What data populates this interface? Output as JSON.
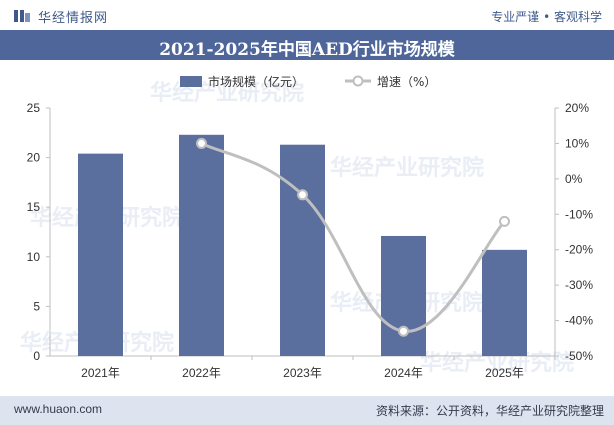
{
  "header": {
    "brand": "华经情报网",
    "slogan": "专业严谨 • 客观科学"
  },
  "title": "2021-2025年中国AED行业市场规模",
  "footer": {
    "url": "www.huaon.com",
    "source": "资料来源：公开资料，华经产业研究院整理"
  },
  "watermark": "华经产业研究院",
  "colors": {
    "bar": "#5b6f9e",
    "line": "#bfbfbf",
    "title_bg": "#4e6699"
  },
  "chart_data": {
    "type": "bar",
    "categories": [
      "2021年",
      "2022年",
      "2023年",
      "2024年",
      "2025年"
    ],
    "series": [
      {
        "name": "市场规模（亿元）",
        "type": "bar",
        "axis": "left",
        "values": [
          20.4,
          22.3,
          21.3,
          12.1,
          10.7
        ]
      },
      {
        "name": "增速（%）",
        "type": "line",
        "axis": "right",
        "values": [
          null,
          10,
          -4.5,
          -43,
          -12
        ]
      }
    ],
    "ylim": [
      0,
      25
    ],
    "yticks": [
      "0",
      "5",
      "10",
      "15",
      "20",
      "25"
    ],
    "y2lim": [
      -50,
      20
    ],
    "y2ticks": [
      "-50%",
      "-40%",
      "-30%",
      "-20%",
      "-10%",
      "0%",
      "10%",
      "20%"
    ],
    "legend": "top-center",
    "grid": false
  }
}
